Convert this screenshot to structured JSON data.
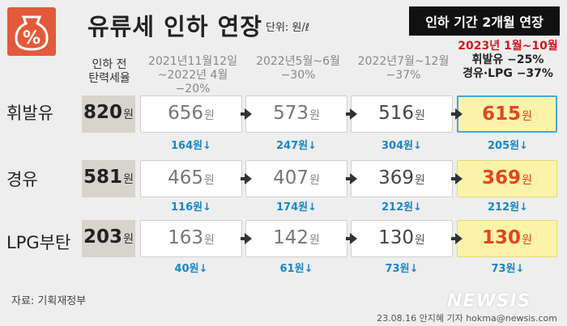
{
  "title": "유류세 인하 연장",
  "unit": "단위: 원/ℓ",
  "banner": "인하 기간 2개월 연장",
  "headers": {
    "base": [
      "인하 전",
      "탄력세율"
    ],
    "col1": [
      "2021년11월12일",
      "~2022년 4월 −20%"
    ],
    "col2": [
      "2022년5월~6월",
      "−30%"
    ],
    "col3": [
      "2022년7월~12월",
      "−37%"
    ],
    "col4": [
      "2023년 1월~10월",
      "휘발유 −25%",
      "경유·LPG −37%"
    ]
  },
  "rows": [
    {
      "label": "휘발유",
      "base": "820",
      "values": [
        "656",
        "573",
        "516",
        "615"
      ],
      "diffs": [
        "164원↓",
        "247원↓",
        "304원↓",
        "205원↓"
      ]
    },
    {
      "label": "경유",
      "base": "581",
      "values": [
        "465",
        "407",
        "369",
        "369"
      ],
      "diffs": [
        "116원↓",
        "174원↓",
        "212원↓",
        "212원↓"
      ]
    },
    {
      "label": "LPG부탄",
      "base": "203",
      "values": [
        "163",
        "142",
        "130",
        "130"
      ],
      "diffs": [
        "40원↓",
        "61원↓",
        "73원↓",
        "73원↓"
      ]
    }
  ],
  "won": "원",
  "source": "자료: 기획재정부",
  "credit": "23.08.16 안지혜 기자 hokma@newsis.com",
  "watermark": "NEWSIS",
  "logo_icon": "percent-jar-icon",
  "colors": {
    "accent": "#e25a3a",
    "highlight": "#fbf4a8",
    "diff": "#1a86c6",
    "result": "#e2461f"
  }
}
